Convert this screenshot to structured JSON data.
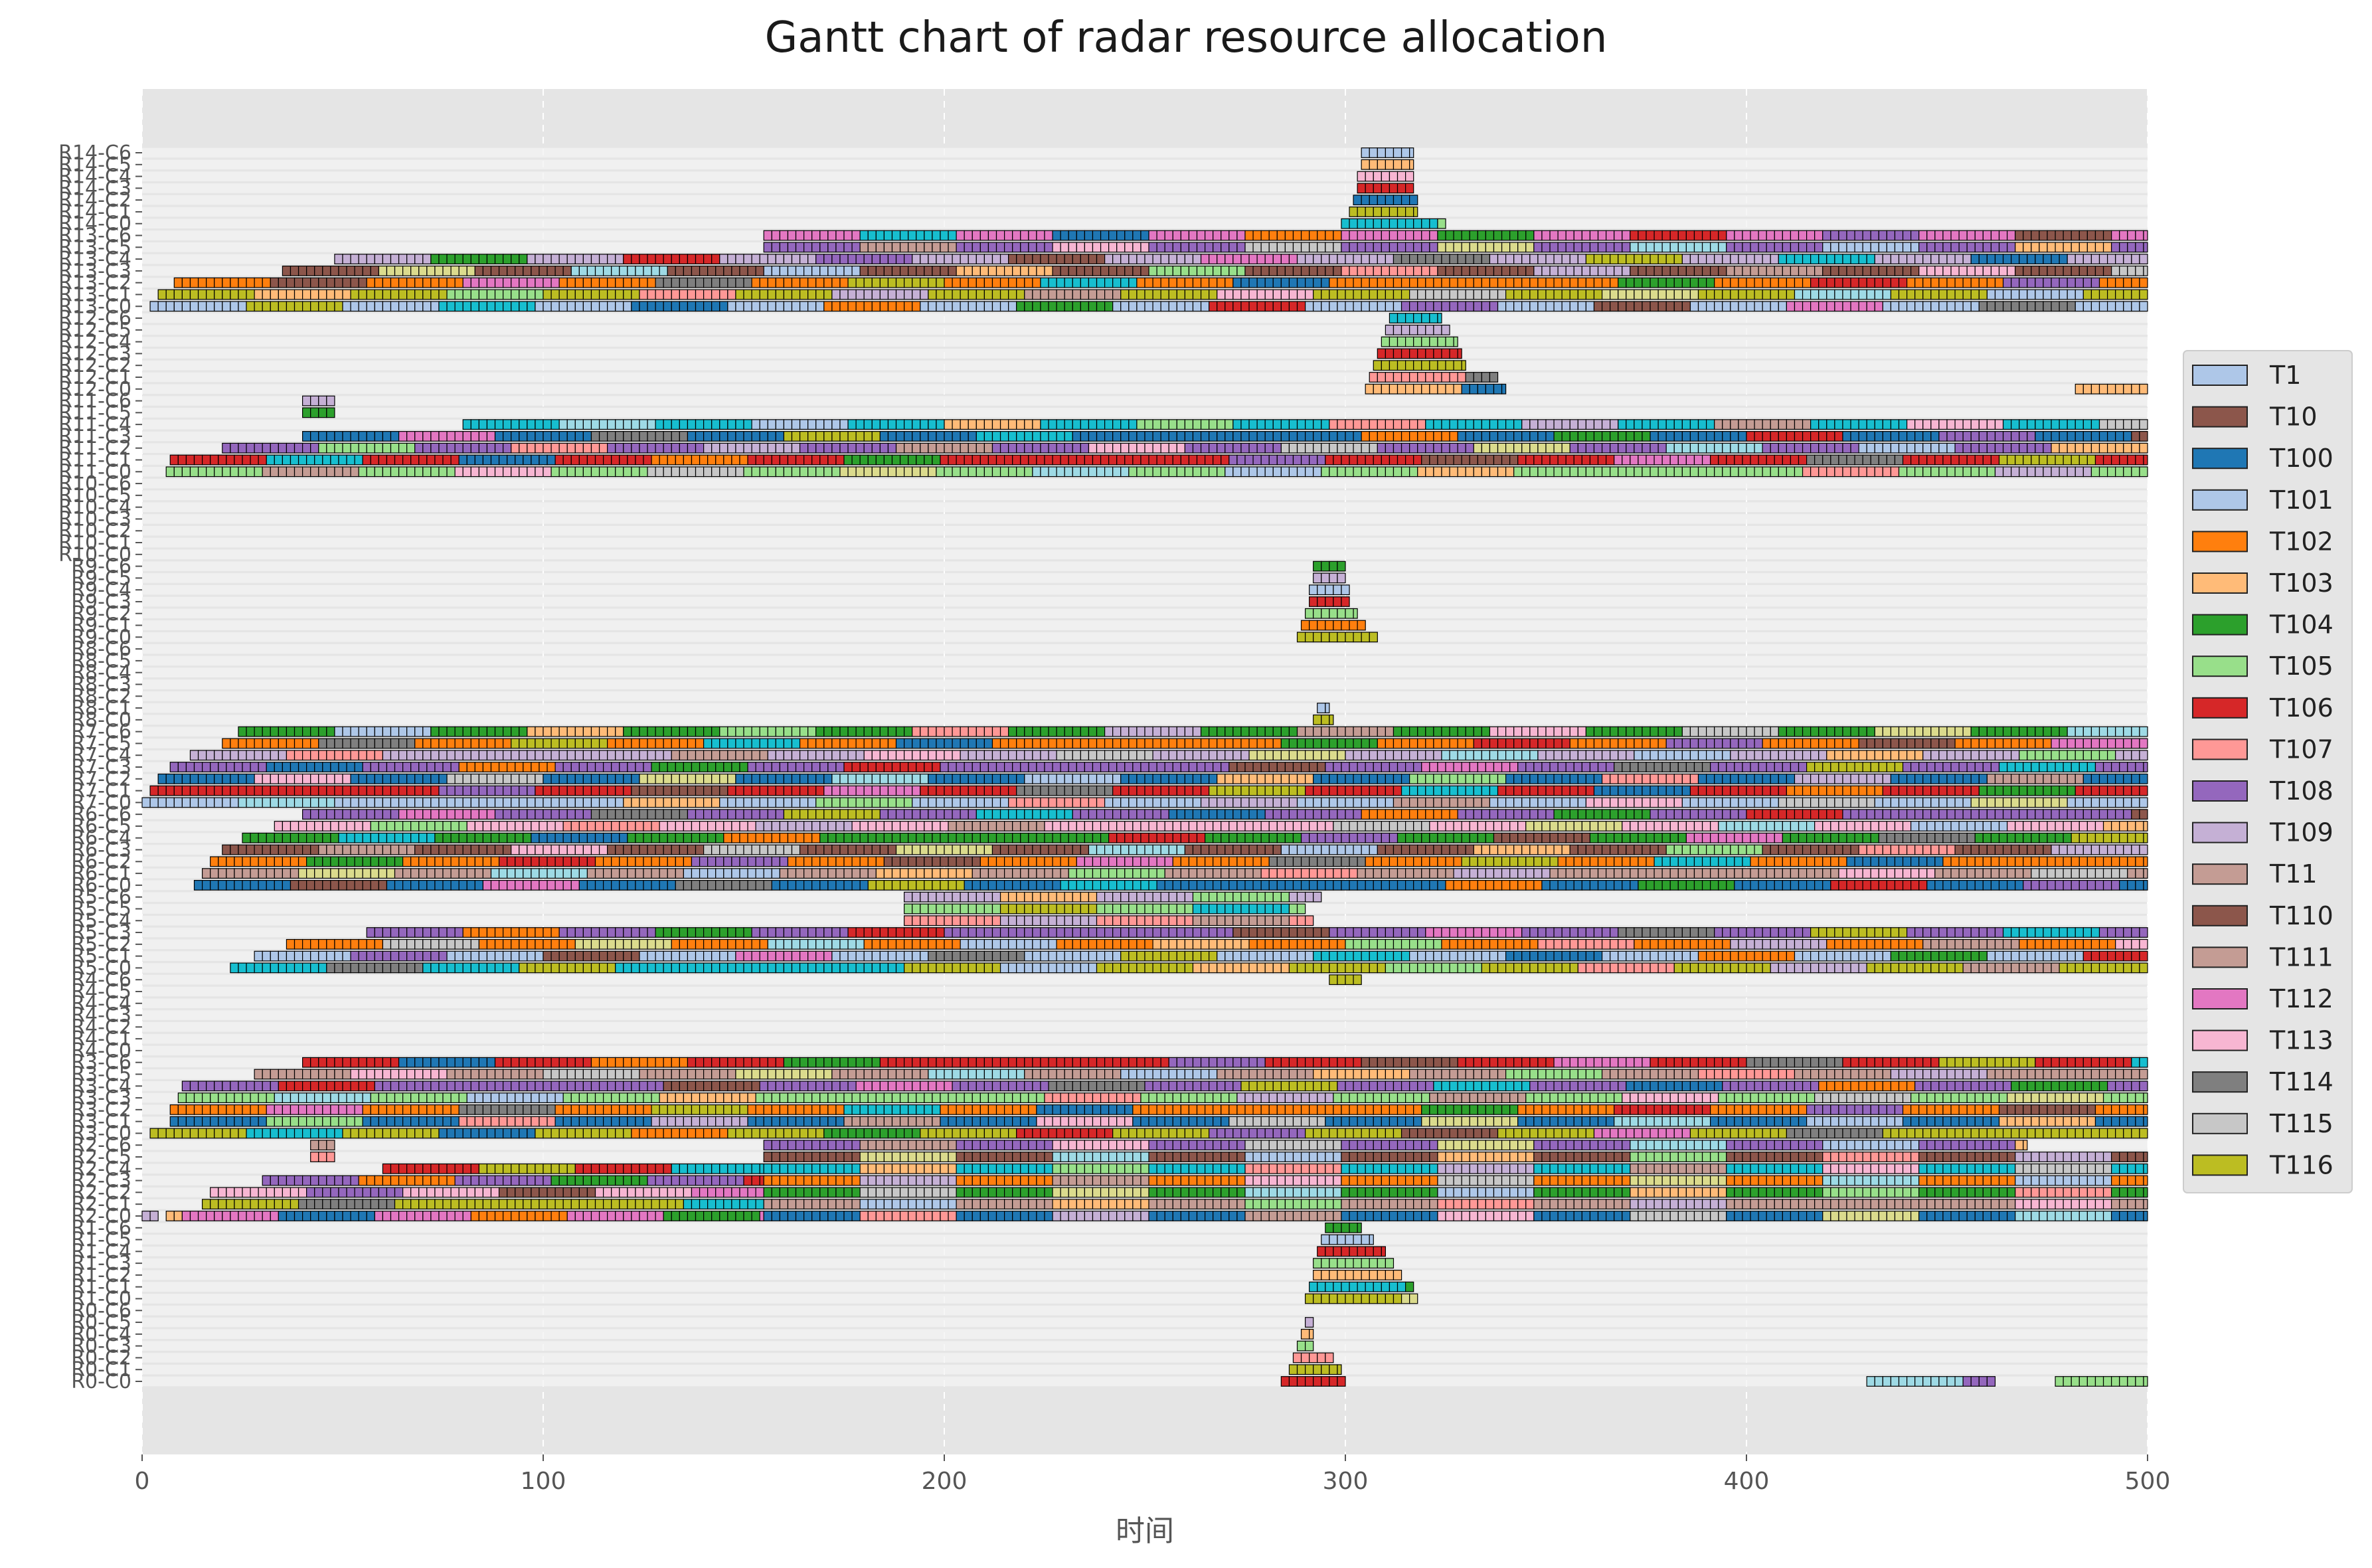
{
  "chart_data": {
    "type": "gantt",
    "title": "Gantt chart of radar resource allocation",
    "xlabel": "时间",
    "ylabel": "",
    "xlim": [
      0,
      500
    ],
    "xticks": [
      "0",
      "100",
      "200",
      "300",
      "400",
      "500"
    ],
    "grid": true,
    "legend_position": "right",
    "radars": [
      "R0",
      "R1",
      "R2",
      "R3",
      "R4",
      "R5",
      "R6",
      "R7",
      "R8",
      "R9",
      "R10",
      "R11",
      "R12",
      "R13",
      "R14"
    ],
    "channels_per_radar": 7,
    "row_label_order": "R0-C0 at bottom, R14-C0 at top",
    "first_row_label": "R0-C0",
    "last_row_label": "R14-C0",
    "legend": [
      {
        "name": "T1",
        "color": "#aec7e8"
      },
      {
        "name": "T10",
        "color": "#8c564b"
      },
      {
        "name": "T100",
        "color": "#1f77b4"
      },
      {
        "name": "T101",
        "color": "#aec7e8"
      },
      {
        "name": "T102",
        "color": "#ff7f0e"
      },
      {
        "name": "T103",
        "color": "#ffbb78"
      },
      {
        "name": "T104",
        "color": "#2ca02c"
      },
      {
        "name": "T105",
        "color": "#98df8a"
      },
      {
        "name": "T106",
        "color": "#d62728"
      },
      {
        "name": "T107",
        "color": "#ff9896"
      },
      {
        "name": "T108",
        "color": "#9467bd"
      },
      {
        "name": "T109",
        "color": "#c5b0d5"
      },
      {
        "name": "T11",
        "color": "#c49c94"
      },
      {
        "name": "T110",
        "color": "#8c564b"
      },
      {
        "name": "T111",
        "color": "#c49c94"
      },
      {
        "name": "T112",
        "color": "#e377c2"
      },
      {
        "name": "T113",
        "color": "#f7b6d2"
      },
      {
        "name": "T114",
        "color": "#7f7f7f"
      },
      {
        "name": "T115",
        "color": "#c7c7c7"
      },
      {
        "name": "T116",
        "color": "#bcbd22"
      }
    ],
    "palette": [
      "#1f77b4",
      "#aec7e8",
      "#ff7f0e",
      "#ffbb78",
      "#2ca02c",
      "#98df8a",
      "#d62728",
      "#ff9896",
      "#9467bd",
      "#c5b0d5",
      "#8c564b",
      "#c49c94",
      "#e377c2",
      "#f7b6d2",
      "#7f7f7f",
      "#c7c7c7",
      "#bcbd22",
      "#dbdb8d",
      "#17becf",
      "#9edae5"
    ],
    "tasks": [
      {
        "row": "R0-C0",
        "start": 284,
        "end": 300,
        "color": "#d62728"
      },
      {
        "row": "R0-C0",
        "start": 430,
        "end": 462,
        "color": "#9edae5"
      },
      {
        "row": "R0-C0",
        "start": 477,
        "end": 500,
        "color": "#98df8a"
      },
      {
        "row": "R0-C1",
        "start": 286,
        "end": 299,
        "color": "#bcbd22"
      },
      {
        "row": "R0-C2",
        "start": 287,
        "end": 297,
        "color": "#ff9896"
      },
      {
        "row": "R0-C3",
        "start": 288,
        "end": 292,
        "color": "#98df8a"
      },
      {
        "row": "R0-C4",
        "start": 289,
        "end": 292,
        "color": "#ffbb78"
      },
      {
        "row": "R0-C5",
        "start": 290,
        "end": 292,
        "color": "#c5b0d5"
      },
      {
        "row": "R1-C0",
        "start": 290,
        "end": 318,
        "color": "#bcbd22"
      },
      {
        "row": "R1-C1",
        "start": 291,
        "end": 317,
        "color": "#17becf"
      },
      {
        "row": "R1-C2",
        "start": 292,
        "end": 314,
        "color": "#ffbb78"
      },
      {
        "row": "R1-C3",
        "start": 292,
        "end": 312,
        "color": "#98df8a"
      },
      {
        "row": "R1-C4",
        "start": 293,
        "end": 310,
        "color": "#d62728"
      },
      {
        "row": "R1-C5",
        "start": 294,
        "end": 307,
        "color": "#aec7e8"
      },
      {
        "row": "R1-C6",
        "start": 295,
        "end": 304,
        "color": "#2ca02c"
      },
      {
        "row": "R2-C0",
        "start": 0,
        "end": 4,
        "color": "#c5b0d5"
      },
      {
        "row": "R2-C0",
        "start": 6,
        "end": 10,
        "color": "#ffbb78"
      },
      {
        "row": "R2-C0",
        "start": 10,
        "end": 155,
        "color": "#e377c2"
      },
      {
        "row": "R2-C0",
        "start": 155,
        "end": 500,
        "color": "#1f77b4"
      },
      {
        "row": "R2-C1",
        "start": 15,
        "end": 155,
        "color": "#bcbd22"
      },
      {
        "row": "R2-C1",
        "start": 155,
        "end": 500,
        "color": "#c49c94"
      },
      {
        "row": "R2-C2",
        "start": 17,
        "end": 155,
        "color": "#f7b6d2"
      },
      {
        "row": "R2-C2",
        "start": 155,
        "end": 500,
        "color": "#2ca02c"
      },
      {
        "row": "R2-C3",
        "start": 30,
        "end": 155,
        "color": "#9467bd"
      },
      {
        "row": "R2-C3",
        "start": 155,
        "end": 500,
        "color": "#ff7f0e"
      },
      {
        "row": "R2-C4",
        "start": 60,
        "end": 155,
        "color": "#d62728"
      },
      {
        "row": "R2-C4",
        "start": 155,
        "end": 500,
        "color": "#17becf"
      },
      {
        "row": "R2-C5",
        "start": 42,
        "end": 48,
        "color": "#ff9896"
      },
      {
        "row": "R2-C5",
        "start": 155,
        "end": 500,
        "color": "#8c564b"
      },
      {
        "row": "R2-C6",
        "start": 42,
        "end": 48,
        "color": "#c49c94"
      },
      {
        "row": "R2-C6",
        "start": 155,
        "end": 470,
        "color": "#9467bd"
      },
      {
        "row": "R3-C0",
        "start": 2,
        "end": 500,
        "color": "#bcbd22"
      },
      {
        "row": "R3-C1",
        "start": 7,
        "end": 500,
        "color": "#1f77b4"
      },
      {
        "row": "R3-C2",
        "start": 7,
        "end": 500,
        "color": "#ff7f0e"
      },
      {
        "row": "R3-C3",
        "start": 9,
        "end": 500,
        "color": "#98df8a"
      },
      {
        "row": "R3-C4",
        "start": 10,
        "end": 500,
        "color": "#9467bd"
      },
      {
        "row": "R3-C5",
        "start": 28,
        "end": 500,
        "color": "#c49c94"
      },
      {
        "row": "R3-C6",
        "start": 40,
        "end": 500,
        "color": "#d62728"
      },
      {
        "row": "R4-C6",
        "start": 296,
        "end": 304,
        "color": "#bcbd22"
      },
      {
        "row": "R5-C0",
        "start": 22,
        "end": 190,
        "color": "#17becf"
      },
      {
        "row": "R5-C0",
        "start": 190,
        "end": 500,
        "color": "#bcbd22"
      },
      {
        "row": "R5-C1",
        "start": 28,
        "end": 500,
        "color": "#aec7e8"
      },
      {
        "row": "R5-C2",
        "start": 36,
        "end": 500,
        "color": "#ff7f0e"
      },
      {
        "row": "R5-C3",
        "start": 56,
        "end": 500,
        "color": "#9467bd"
      },
      {
        "row": "R5-C4",
        "start": 190,
        "end": 292,
        "color": "#ff9896"
      },
      {
        "row": "R5-C5",
        "start": 190,
        "end": 290,
        "color": "#98df8a"
      },
      {
        "row": "R5-C6",
        "start": 190,
        "end": 294,
        "color": "#c5b0d5"
      },
      {
        "row": "R6-C0",
        "start": 13,
        "end": 500,
        "color": "#1f77b4"
      },
      {
        "row": "R6-C1",
        "start": 15,
        "end": 500,
        "color": "#c49c94"
      },
      {
        "row": "R6-C2",
        "start": 17,
        "end": 500,
        "color": "#ff7f0e"
      },
      {
        "row": "R6-C3",
        "start": 20,
        "end": 500,
        "color": "#8c564b"
      },
      {
        "row": "R6-C4",
        "start": 25,
        "end": 500,
        "color": "#2ca02c"
      },
      {
        "row": "R6-C5",
        "start": 33,
        "end": 500,
        "color": "#f7b6d2"
      },
      {
        "row": "R6-C6",
        "start": 40,
        "end": 500,
        "color": "#9467bd"
      },
      {
        "row": "R7-C0",
        "start": 0,
        "end": 500,
        "color": "#aec7e8"
      },
      {
        "row": "R7-C1",
        "start": 2,
        "end": 500,
        "color": "#d62728"
      },
      {
        "row": "R7-C2",
        "start": 4,
        "end": 500,
        "color": "#1f77b4"
      },
      {
        "row": "R7-C3",
        "start": 7,
        "end": 500,
        "color": "#9467bd"
      },
      {
        "row": "R7-C4",
        "start": 12,
        "end": 500,
        "color": "#c5b0d5"
      },
      {
        "row": "R7-C5",
        "start": 20,
        "end": 500,
        "color": "#ff7f0e"
      },
      {
        "row": "R7-C6",
        "start": 24,
        "end": 500,
        "color": "#2ca02c"
      },
      {
        "row": "R8-C0",
        "start": 292,
        "end": 297,
        "color": "#bcbd22"
      },
      {
        "row": "R8-C1",
        "start": 293,
        "end": 296,
        "color": "#aec7e8"
      },
      {
        "row": "R9-C0",
        "start": 288,
        "end": 308,
        "color": "#bcbd22"
      },
      {
        "row": "R9-C1",
        "start": 289,
        "end": 305,
        "color": "#ff7f0e"
      },
      {
        "row": "R9-C2",
        "start": 290,
        "end": 303,
        "color": "#98df8a"
      },
      {
        "row": "R9-C3",
        "start": 291,
        "end": 301,
        "color": "#d62728"
      },
      {
        "row": "R9-C4",
        "start": 291,
        "end": 301,
        "color": "#aec7e8"
      },
      {
        "row": "R9-C5",
        "start": 292,
        "end": 300,
        "color": "#c5b0d5"
      },
      {
        "row": "R9-C6",
        "start": 292,
        "end": 300,
        "color": "#2ca02c"
      },
      {
        "row": "R11-C0",
        "start": 6,
        "end": 500,
        "color": "#98df8a"
      },
      {
        "row": "R11-C1",
        "start": 7,
        "end": 500,
        "color": "#d62728"
      },
      {
        "row": "R11-C2",
        "start": 20,
        "end": 500,
        "color": "#9467bd"
      },
      {
        "row": "R11-C3",
        "start": 40,
        "end": 500,
        "color": "#1f77b4"
      },
      {
        "row": "R11-C4",
        "start": 80,
        "end": 500,
        "color": "#17becf"
      },
      {
        "row": "R11-C5",
        "start": 40,
        "end": 48,
        "color": "#2ca02c"
      },
      {
        "row": "R11-C6",
        "start": 40,
        "end": 48,
        "color": "#c5b0d5"
      },
      {
        "row": "R12-C0",
        "start": 305,
        "end": 340,
        "color": "#ffbb78"
      },
      {
        "row": "R12-C0",
        "start": 482,
        "end": 500,
        "color": "#ffbb78"
      },
      {
        "row": "R12-C1",
        "start": 306,
        "end": 338,
        "color": "#ff9896"
      },
      {
        "row": "R12-C2",
        "start": 307,
        "end": 330,
        "color": "#bcbd22"
      },
      {
        "row": "R12-C3",
        "start": 308,
        "end": 329,
        "color": "#d62728"
      },
      {
        "row": "R12-C4",
        "start": 309,
        "end": 328,
        "color": "#98df8a"
      },
      {
        "row": "R12-C5",
        "start": 310,
        "end": 326,
        "color": "#c5b0d5"
      },
      {
        "row": "R12-C6",
        "start": 311,
        "end": 324,
        "color": "#17becf"
      },
      {
        "row": "R13-C0",
        "start": 2,
        "end": 500,
        "color": "#aec7e8"
      },
      {
        "row": "R13-C1",
        "start": 4,
        "end": 500,
        "color": "#bcbd22"
      },
      {
        "row": "R13-C2",
        "start": 8,
        "end": 500,
        "color": "#ff7f0e"
      },
      {
        "row": "R13-C3",
        "start": 35,
        "end": 500,
        "color": "#8c564b"
      },
      {
        "row": "R13-C4",
        "start": 48,
        "end": 500,
        "color": "#c5b0d5"
      },
      {
        "row": "R13-C5",
        "start": 155,
        "end": 500,
        "color": "#9467bd"
      },
      {
        "row": "R13-C6",
        "start": 155,
        "end": 500,
        "color": "#e377c2"
      },
      {
        "row": "R14-C0",
        "start": 299,
        "end": 325,
        "color": "#17becf"
      },
      {
        "row": "R14-C1",
        "start": 301,
        "end": 318,
        "color": "#bcbd22"
      },
      {
        "row": "R14-C2",
        "start": 302,
        "end": 318,
        "color": "#1f77b4"
      },
      {
        "row": "R14-C3",
        "start": 303,
        "end": 317,
        "color": "#d62728"
      },
      {
        "row": "R14-C4",
        "start": 303,
        "end": 317,
        "color": "#f7b6d2"
      },
      {
        "row": "R14-C5",
        "start": 304,
        "end": 317,
        "color": "#ffbb78"
      },
      {
        "row": "R14-C6",
        "start": 304,
        "end": 317,
        "color": "#aec7e8"
      }
    ]
  }
}
